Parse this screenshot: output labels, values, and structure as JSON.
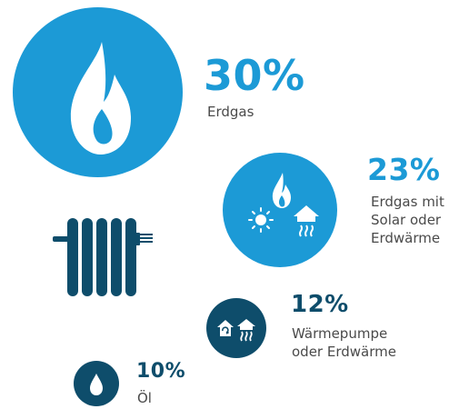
{
  "colors": {
    "light_blue": "#1c9ad6",
    "dark_blue": "#0e4d6b",
    "label_gray": "#4a4a4a",
    "white": "#ffffff"
  },
  "items": [
    {
      "percent": "30%",
      "label_lines": [
        "Erdgas"
      ],
      "icon": "flame-icon",
      "color": "#1c9ad6"
    },
    {
      "percent": "23%",
      "label_lines": [
        "Erdgas mit",
        "Solar oder",
        "Erdwärme"
      ],
      "icon": "flame-sun-house-icon",
      "color": "#1c9ad6"
    },
    {
      "percent": "12%",
      "label_lines": [
        "Wärmepumpe",
        "oder Erdwärme"
      ],
      "icon": "heat-pump-house-icon",
      "color": "#0e4d6b"
    },
    {
      "percent": "10%",
      "label_lines": [
        "Öl"
      ],
      "icon": "oil-drop-icon",
      "color": "#0e4d6b"
    }
  ],
  "decoration": {
    "radiator_icon": "radiator-icon"
  }
}
